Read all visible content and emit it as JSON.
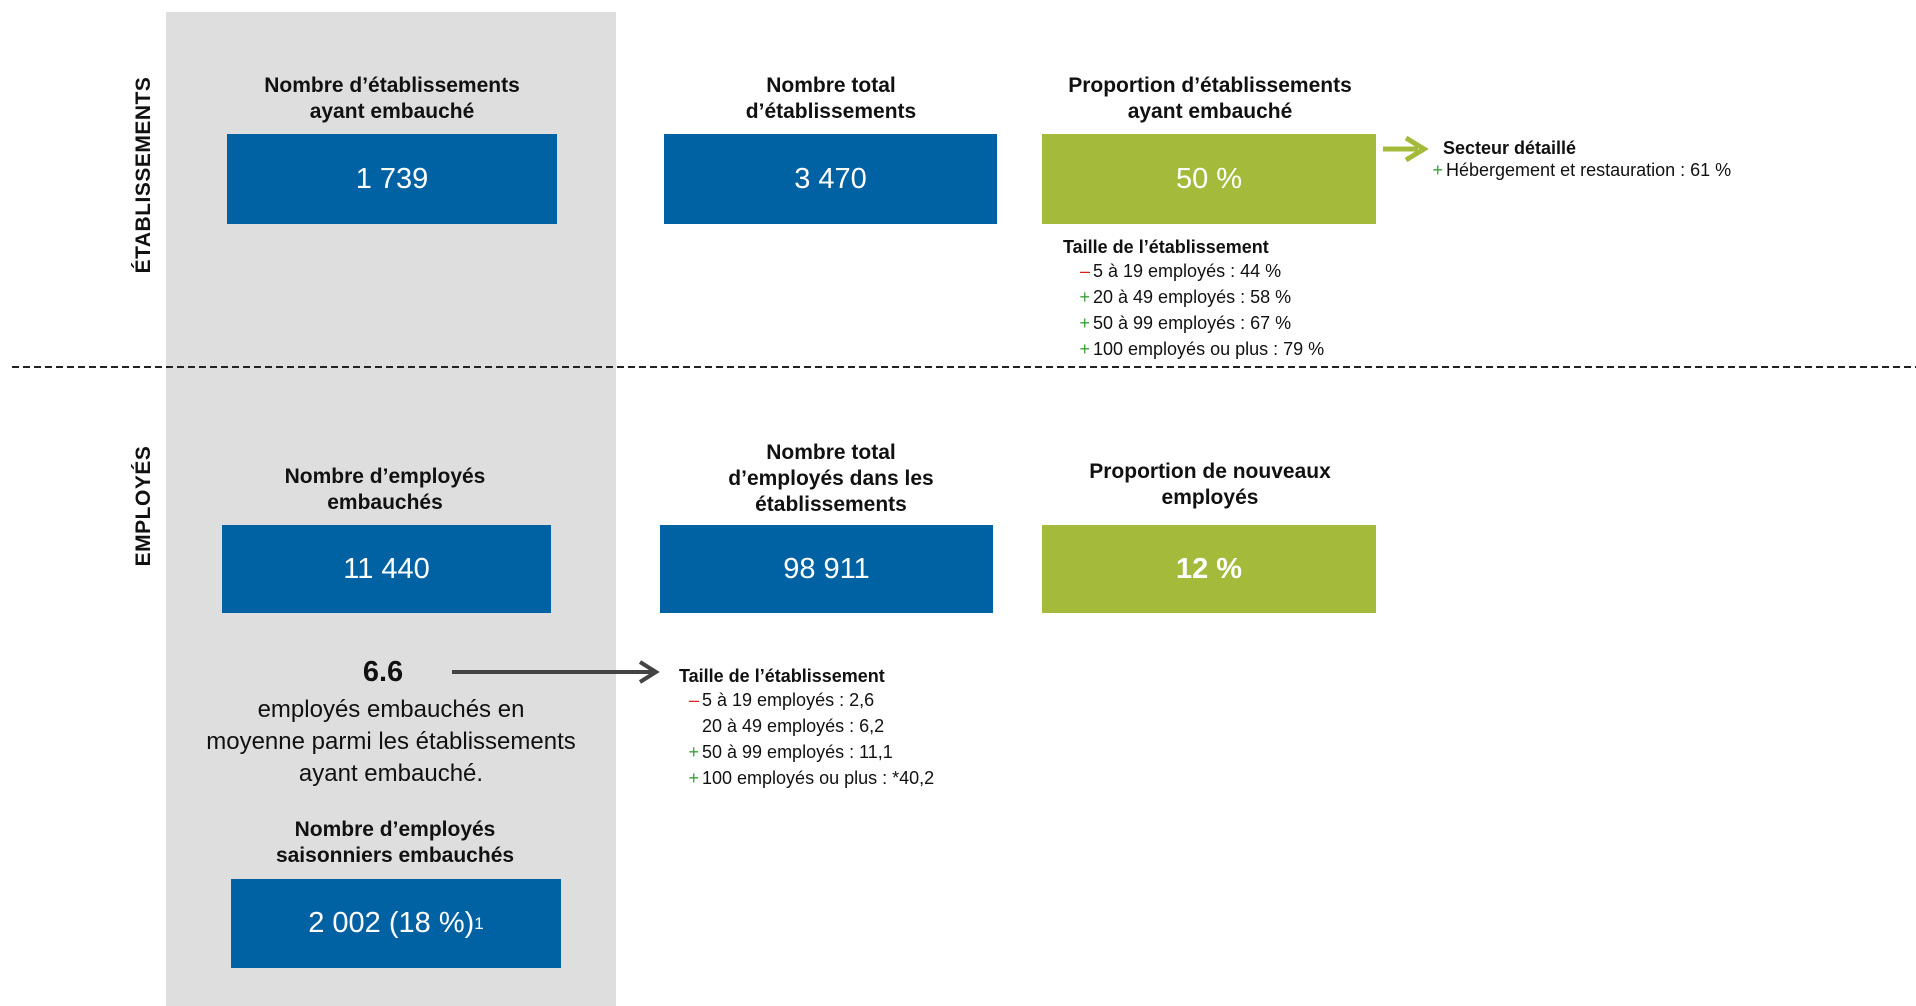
{
  "sections": {
    "etablissements": "ÉTABLISSEMENTS",
    "employes": "EMPLOYÉS"
  },
  "etablissements": {
    "embauche": {
      "title": "Nombre d’établissements\nayant embauché",
      "value": "1 739"
    },
    "total": {
      "title": "Nombre total\nd’établissements",
      "value": "3 470"
    },
    "proportion": {
      "title": "Proportion d’établissements\nayant embauché",
      "value": "50 %"
    },
    "secteur": {
      "title": "Secteur détaillé",
      "items": [
        {
          "sign": "+",
          "text": "Hébergement et restauration : 61 %"
        }
      ]
    },
    "taille": {
      "title": "Taille de l’établissement",
      "items": [
        {
          "sign": "–",
          "text": "5 à 19 employés : 44 %"
        },
        {
          "sign": "+",
          "text": "20 à 49 employés : 58 %"
        },
        {
          "sign": "+",
          "text": "50 à 99 employés : 67 %"
        },
        {
          "sign": "+",
          "text": "100 employés ou plus : 79 %"
        }
      ]
    }
  },
  "employes": {
    "embauches": {
      "title": "Nombre d’employés\nembauchés",
      "value": "11 440"
    },
    "total": {
      "title": "Nombre total\nd’employés dans les\nétablissements",
      "value": "98 911"
    },
    "proportion": {
      "title": "Proportion de nouveaux\nemployés",
      "value": "12 %"
    },
    "moyenne": {
      "value": "6.6",
      "text": "employés embauchés en\nmoyenne parmi les établissements\nayant embauché."
    },
    "taille": {
      "title": "Taille de l’établissement",
      "items": [
        {
          "sign": "–",
          "text": "5 à 19 employés : 2,6"
        },
        {
          "text": "20 à 49 employés : 6,2"
        },
        {
          "sign": "+",
          "text": "50 à 99 employés : 11,1"
        },
        {
          "sign": "+",
          "text": "100 employés ou plus : *40,2"
        }
      ]
    },
    "saisonniers": {
      "title": "Nombre d’employés\nsaisonniers embauchés",
      "value": "2 002 (18 %)",
      "note": "1"
    }
  }
}
